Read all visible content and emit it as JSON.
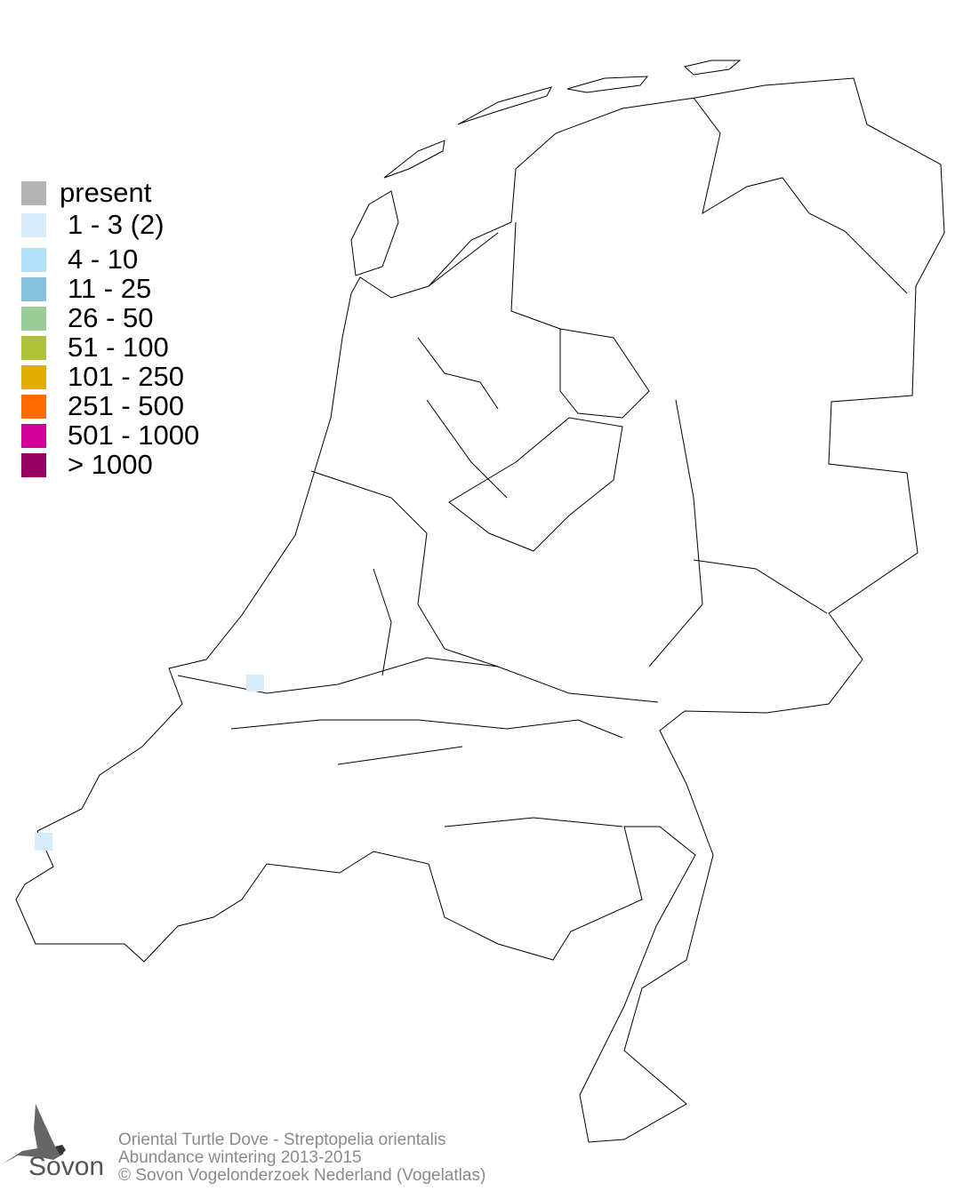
{
  "legend": {
    "items": [
      {
        "label": "present",
        "color": "#b3b3b3"
      },
      {
        "label": "1 - 3 (2)",
        "color": "#d6ecfb"
      },
      {
        "label": "4 - 10",
        "color": "#b1e2fa"
      },
      {
        "label": "11 - 25",
        "color": "#86c1df"
      },
      {
        "label": "26 - 50",
        "color": "#98cd96"
      },
      {
        "label": "51 - 100",
        "color": "#b0c23a"
      },
      {
        "label": "101 - 250",
        "color": "#e3ad00"
      },
      {
        "label": "251 - 500",
        "color": "#ff6b00"
      },
      {
        "label": "501 - 1000",
        "color": "#d1009a"
      },
      {
        "label": "> 1000",
        "color": "#990066"
      }
    ]
  },
  "map": {
    "region": "Netherlands",
    "observed_cells": [
      {
        "location": "Hoek van Holland / Westland coast",
        "class": "1 - 3 (2)"
      },
      {
        "location": "Walcheren, Zeeland",
        "class": "1 - 3 (2)"
      }
    ]
  },
  "footer": {
    "line1": "Oriental Turtle Dove - Streptopelia orientalis",
    "line2": "Abundance wintering 2013-2015",
    "line3": "© Sovon Vogelonderzoek Nederland (Vogelatlas)"
  },
  "logo": {
    "text": "Sovon"
  }
}
